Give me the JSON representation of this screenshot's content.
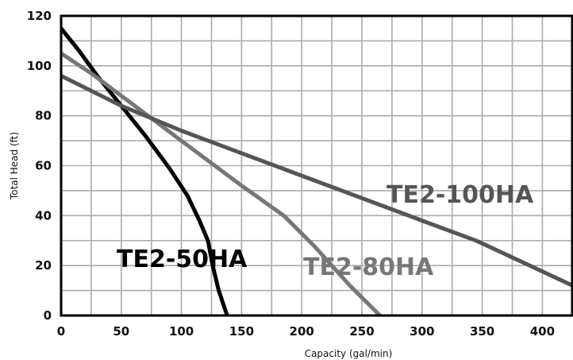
{
  "chart_data": {
    "type": "line",
    "title": "",
    "xlabel": "Capacity (gal/min)",
    "ylabel": "Total Head (ft)",
    "xlim": [
      0,
      425
    ],
    "ylim": [
      0,
      120
    ],
    "xticks": [
      0,
      50,
      100,
      150,
      200,
      250,
      300,
      350,
      400
    ],
    "yticks": [
      0,
      20,
      40,
      60,
      80,
      100,
      120
    ],
    "grid": true,
    "series": [
      {
        "name": "TE2-50HA",
        "color": "#000000",
        "points": [
          [
            0,
            115
          ],
          [
            15,
            106
          ],
          [
            30,
            96
          ],
          [
            50,
            84
          ],
          [
            70,
            72
          ],
          [
            90,
            59
          ],
          [
            105,
            48
          ],
          [
            115,
            38
          ],
          [
            122,
            30
          ],
          [
            126,
            20
          ],
          [
            131,
            10
          ],
          [
            138,
            0
          ]
        ]
      },
      {
        "name": "TE2-80HA",
        "color": "#777777",
        "points": [
          [
            0,
            105
          ],
          [
            25,
            97
          ],
          [
            50,
            88
          ],
          [
            75,
            79
          ],
          [
            100,
            70
          ],
          [
            125,
            61
          ],
          [
            150,
            52
          ],
          [
            185,
            40
          ],
          [
            210,
            28
          ],
          [
            240,
            12
          ],
          [
            265,
            0
          ]
        ]
      },
      {
        "name": "TE2-100HA",
        "color": "#555555",
        "points": [
          [
            0,
            96
          ],
          [
            50,
            84
          ],
          [
            100,
            74
          ],
          [
            150,
            65
          ],
          [
            200,
            56
          ],
          [
            250,
            47
          ],
          [
            300,
            38
          ],
          [
            345,
            30
          ],
          [
            385,
            21
          ],
          [
            425,
            12
          ]
        ]
      }
    ]
  }
}
